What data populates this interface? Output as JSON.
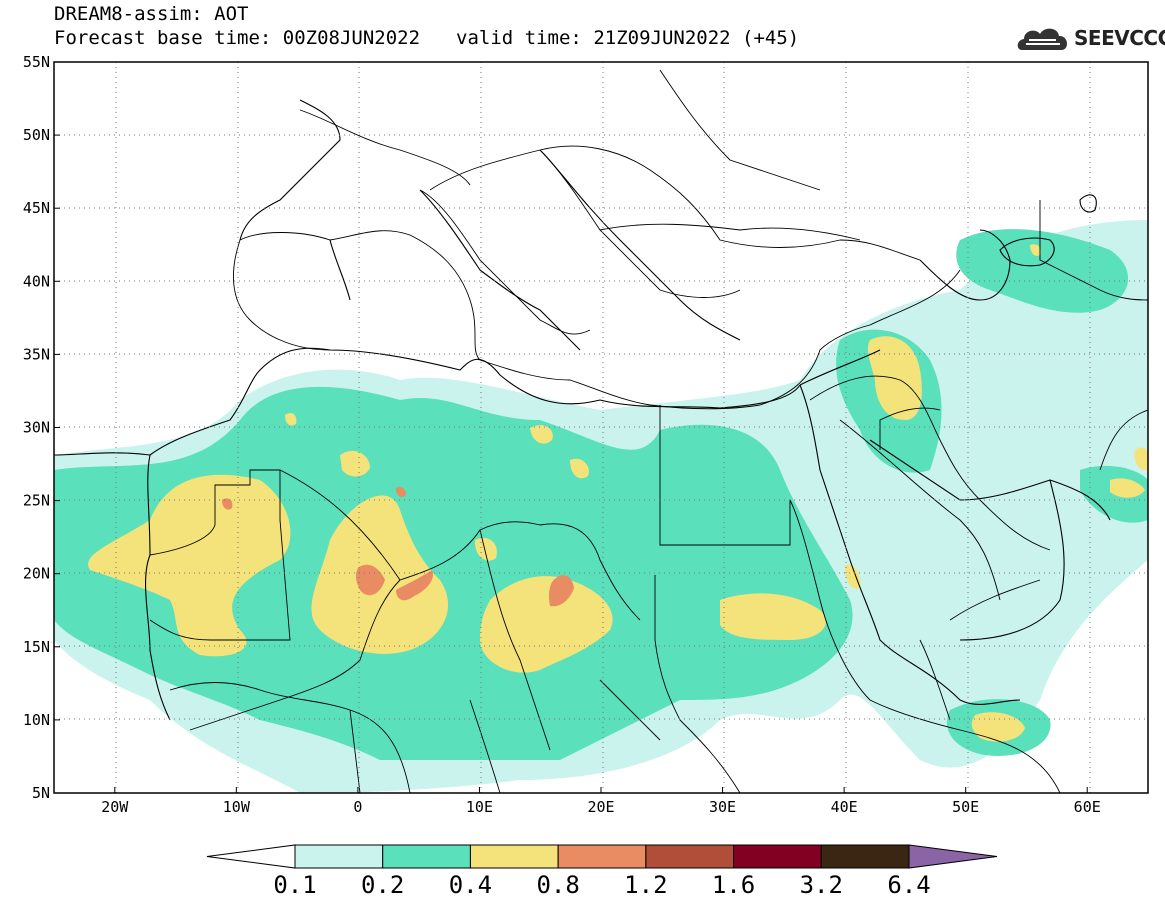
{
  "header": {
    "title_line1": "DREAM8-assim: AOT",
    "title_line2_base": "Forecast base time: 00Z08JUN2022",
    "title_line2_valid": "valid time: 21Z09JUN2022 (+45)"
  },
  "logo": {
    "text": "SEEVCCC",
    "icon": "cloud-icon"
  },
  "map": {
    "lat_labels": [
      "55N",
      "50N",
      "45N",
      "40N",
      "35N",
      "30N",
      "25N",
      "20N",
      "15N",
      "10N",
      "5N"
    ],
    "lon_labels": [
      "20W",
      "10W",
      "0",
      "10E",
      "20E",
      "30E",
      "40E",
      "50E",
      "60E"
    ],
    "lat_range": [
      5,
      55
    ],
    "lon_range": [
      -25,
      65
    ],
    "grid": "dotted"
  },
  "colorbar": {
    "labels": [
      "0.1",
      "0.2",
      "0.4",
      "0.8",
      "1.2",
      "1.6",
      "3.2",
      "6.4"
    ],
    "colors": [
      "#ffffff",
      "#c9f3ec",
      "#5ae0bb",
      "#f4e27b",
      "#e98c63",
      "#b04e3a",
      "#820022",
      "#3b2614",
      "#8b64a6"
    ]
  },
  "colors": {
    "aot_0_1": "#c9f3ec",
    "aot_0_2": "#5ae0bb",
    "aot_0_4": "#f4e27b",
    "aot_0_8": "#e98c63"
  }
}
